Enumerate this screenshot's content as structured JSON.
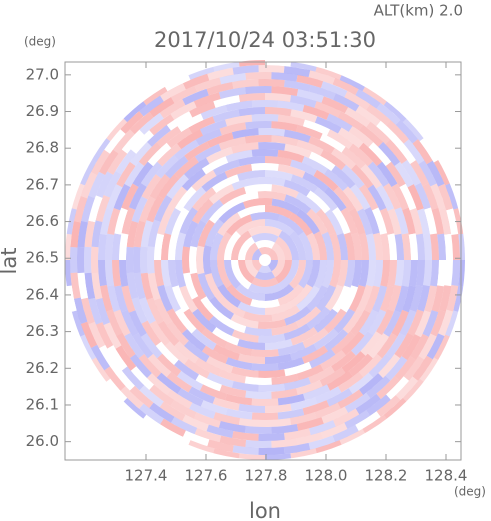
{
  "chart_data": {
    "type": "radar-ppi",
    "title": "2017/10/24 03:51:30",
    "altitude_label": "ALT(km) 2.0",
    "y_unit": "(deg)",
    "x_unit": "(deg)",
    "x_label": "lon",
    "y_label": "lat",
    "xlim": [
      127.13,
      128.45
    ],
    "ylim": [
      25.95,
      27.035
    ],
    "xticks": [
      127.4,
      127.6,
      127.8,
      128.0,
      128.2,
      128.4
    ],
    "yticks": [
      26.0,
      26.1,
      26.2,
      26.3,
      26.4,
      26.5,
      26.6,
      26.7,
      26.8,
      26.9,
      27.0
    ]
  }
}
